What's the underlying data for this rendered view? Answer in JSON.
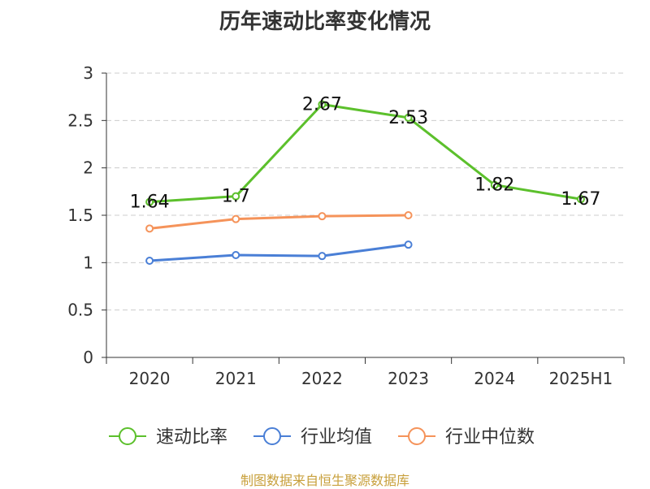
{
  "chart_data": {
    "type": "line",
    "title": "历年速动比率变化情况",
    "categories": [
      "2020",
      "2021",
      "2022",
      "2023",
      "2024",
      "2025H1"
    ],
    "ylim": [
      0,
      3
    ],
    "yticks": [
      "0",
      "0.5",
      "1",
      "1.5",
      "2",
      "2.5",
      "3"
    ],
    "grid": true,
    "legend_position": "bottom",
    "series": [
      {
        "name": "速动比率",
        "color": "#5cc02c",
        "values": [
          1.64,
          1.7,
          2.67,
          2.53,
          1.82,
          1.67
        ],
        "labels": [
          "1.64",
          "1.7",
          "2.67",
          "2.53",
          "1.82",
          "1.67"
        ]
      },
      {
        "name": "行业均值",
        "color": "#4a7fd6",
        "values": [
          1.02,
          1.08,
          1.07,
          1.19,
          null,
          null
        ]
      },
      {
        "name": "行业中位数",
        "color": "#f5935a",
        "values": [
          1.36,
          1.46,
          1.49,
          1.5,
          null,
          null
        ]
      }
    ]
  },
  "footer": {
    "source": "制图数据来自恒生聚源数据库"
  }
}
